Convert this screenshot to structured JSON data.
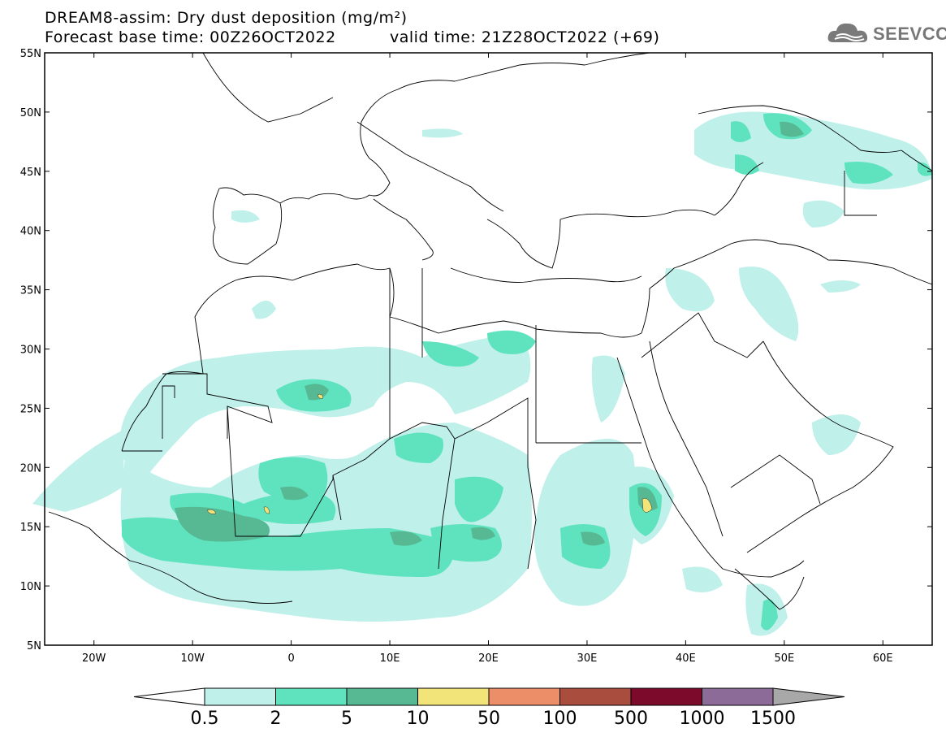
{
  "header": {
    "title_line1": "DREAM8-assim: Dry dust deposition (mg/m²)",
    "base_time": "Forecast base time: 00Z26OCT2022",
    "valid_time": "valid time: 21Z28OCT2022 (+69)",
    "logo_text": "SEEVCCC"
  },
  "map": {
    "lat_labels": [
      "55N",
      "50N",
      "45N",
      "40N",
      "35N",
      "30N",
      "25N",
      "20N",
      "15N",
      "10N",
      "5N"
    ],
    "lon_labels": [
      "20W",
      "10W",
      "0",
      "10E",
      "20E",
      "30E",
      "40E",
      "50E",
      "60E"
    ],
    "lat_range": [
      5,
      55
    ],
    "lon_range": [
      -25,
      65
    ]
  },
  "legend": {
    "levels": [
      "0.5",
      "2",
      "5",
      "10",
      "50",
      "100",
      "500",
      "1000",
      "1500"
    ],
    "colors": [
      "#bff0ea",
      "#5fe3be",
      "#57b993",
      "#f3e47a",
      "#ec8e68",
      "#a94d3e",
      "#7c0b2b",
      "#8c6b98",
      "#a8a8a8"
    ],
    "underflow_color": "#ffffff"
  }
}
